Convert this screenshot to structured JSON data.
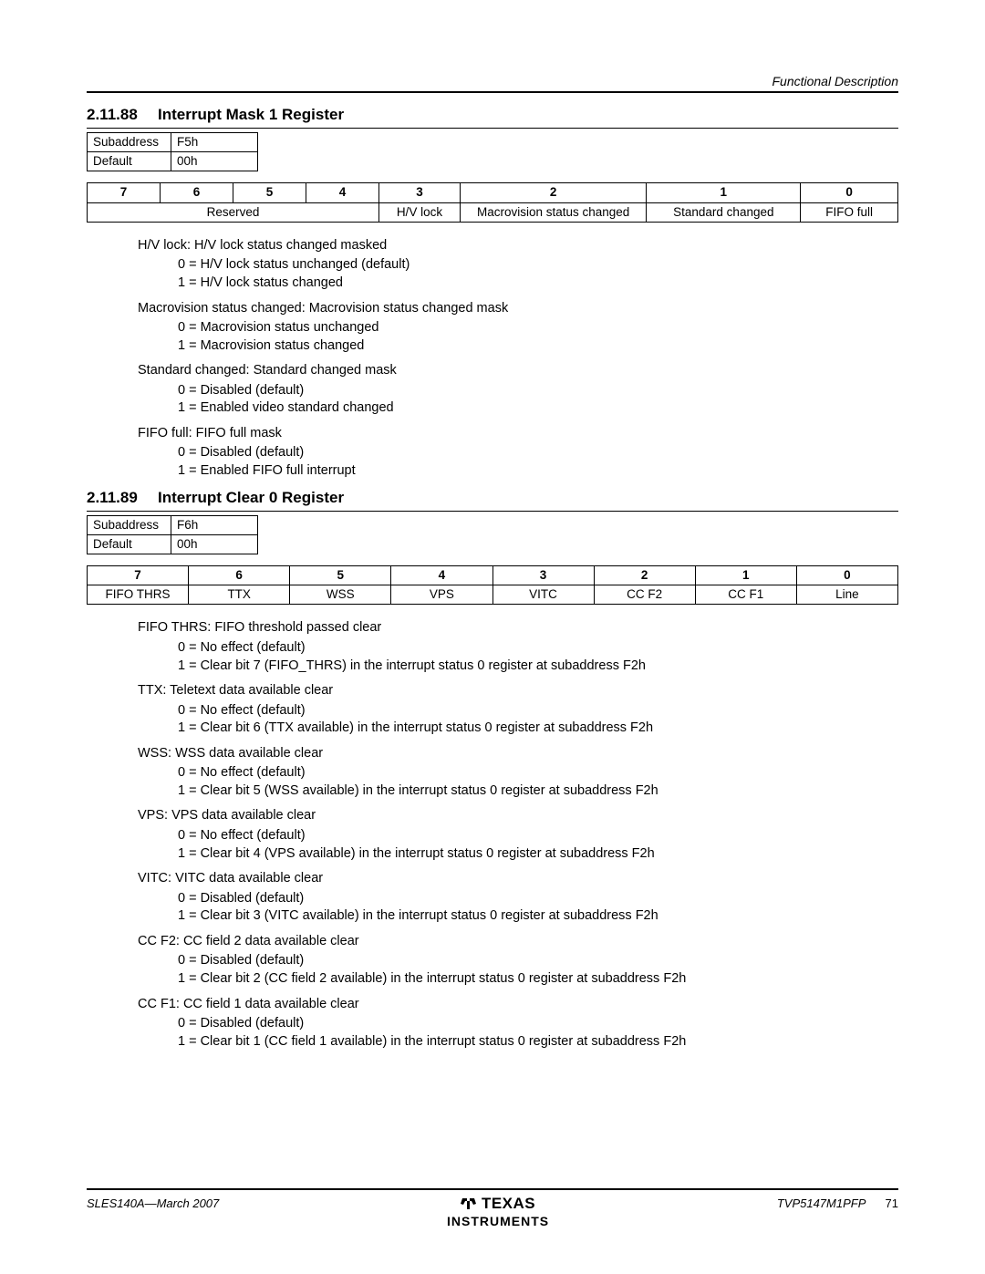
{
  "header": {
    "right": "Functional Description"
  },
  "sections": [
    {
      "num": "2.11.88",
      "title": "Interrupt Mask 1 Register",
      "info": {
        "subaddress_label": "Subaddress",
        "subaddress": "F5h",
        "default_label": "Default",
        "default": "00h"
      },
      "bits": {
        "header": [
          "7",
          "6",
          "5",
          "4",
          "3",
          "2",
          "1",
          "0"
        ],
        "row": {
          "reserved": "Reserved",
          "hvlock": "H/V lock",
          "macro": "Macrovision status changed",
          "std": "Standard changed",
          "fifo": "FIFO full"
        },
        "colspans": [
          4,
          1,
          1,
          1,
          1
        ]
      },
      "fields": [
        {
          "label": "H/V lock: H/V lock status changed masked",
          "vals": [
            "0 = H/V lock status unchanged (default)",
            "1 = H/V lock status changed"
          ]
        },
        {
          "label": "Macrovision status changed: Macrovision status changed mask",
          "vals": [
            "0 = Macrovision status unchanged",
            "1 = Macrovision status changed"
          ]
        },
        {
          "label": "Standard changed: Standard changed mask",
          "vals": [
            "0 = Disabled (default)",
            "1 = Enabled video standard changed"
          ]
        },
        {
          "label": "FIFO full: FIFO full mask",
          "vals": [
            "0 = Disabled (default)",
            "1 = Enabled FIFO full interrupt"
          ]
        }
      ]
    },
    {
      "num": "2.11.89",
      "title": "Interrupt Clear 0 Register",
      "info": {
        "subaddress_label": "Subaddress",
        "subaddress": "F6h",
        "default_label": "Default",
        "default": "00h"
      },
      "bits": {
        "header": [
          "7",
          "6",
          "5",
          "4",
          "3",
          "2",
          "1",
          "0"
        ],
        "row2": [
          "FIFO THRS",
          "TTX",
          "WSS",
          "VPS",
          "VITC",
          "CC F2",
          "CC F1",
          "Line"
        ]
      },
      "fields": [
        {
          "label": "FIFO THRS: FIFO threshold passed clear",
          "vals": [
            "0 = No effect (default)",
            "1 = Clear bit 7 (FIFO_THRS) in the interrupt status 0 register at subaddress F2h"
          ]
        },
        {
          "label": "TTX: Teletext data available clear",
          "vals": [
            "0 = No effect (default)",
            "1 = Clear bit 6 (TTX available) in the interrupt status 0 register at subaddress F2h"
          ]
        },
        {
          "label": "WSS: WSS data available clear",
          "vals": [
            "0 = No effect (default)",
            "1 = Clear bit 5 (WSS available) in the interrupt status 0 register at subaddress F2h"
          ]
        },
        {
          "label": "VPS: VPS data available clear",
          "vals": [
            "0 = No effect (default)",
            "1 = Clear bit 4 (VPS available) in the interrupt status 0 register at subaddress F2h"
          ]
        },
        {
          "label": "VITC: VITC data available clear",
          "vals": [
            "0 = Disabled (default)",
            "1 = Clear bit 3 (VITC available) in the interrupt status 0 register at subaddress F2h"
          ]
        },
        {
          "label": "CC F2: CC field 2 data available clear",
          "vals": [
            "0 = Disabled (default)",
            "1 = Clear bit 2 (CC field 2 available) in the interrupt status 0 register at subaddress F2h"
          ]
        },
        {
          "label": "CC F1: CC field 1 data available clear",
          "vals": [
            "0 = Disabled (default)",
            "1 = Clear bit 1 (CC field 1 available) in the interrupt status 0 register at subaddress F2h"
          ]
        }
      ]
    }
  ],
  "footer": {
    "left": "SLES140A—March 2007",
    "brand_top": "TEXAS",
    "brand_bot": "INSTRUMENTS",
    "right_part": "TVP5147M1PFP",
    "right_page": "71"
  }
}
